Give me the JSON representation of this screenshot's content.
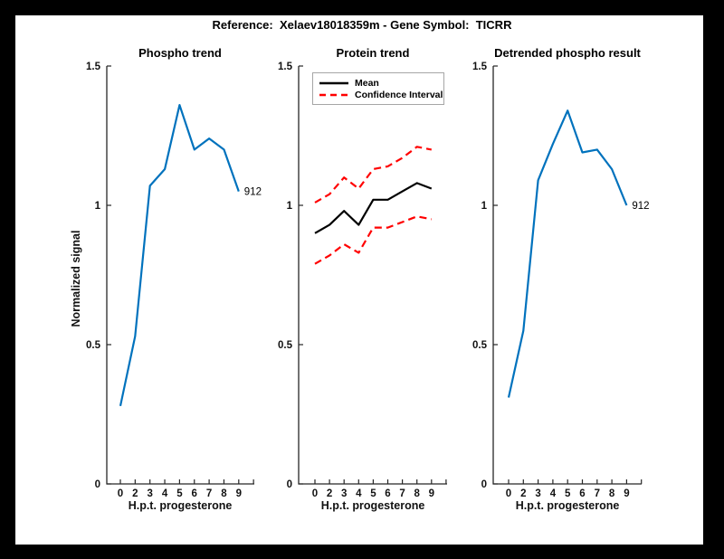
{
  "figure": {
    "title": "Reference:  Xelaev18018359m - Gene Symbol:  TICRR"
  },
  "colors": {
    "blue": "#0072BD",
    "red": "#FF0000",
    "black": "#000000",
    "axis": "#262626",
    "figure_border": "#000000",
    "paper": "#ffffff"
  },
  "chart_data": [
    {
      "type": "line",
      "title": "Phospho trend",
      "xlabel": "H.p.t. progesterone",
      "ylabel": "Normalized signal",
      "x_labels": [
        "0",
        "2",
        "3",
        "4",
        "5",
        "6",
        "7",
        "8",
        "9"
      ],
      "ylim": [
        0,
        1.5
      ],
      "yticks": [
        0,
        0.5,
        1,
        1.5
      ],
      "ytick_labels": [
        "0",
        "0.5",
        "1",
        "1.5"
      ],
      "grid": false,
      "series": [
        {
          "name": "phospho-signal",
          "color": "#0072BD",
          "dashed": false,
          "values": [
            0.28,
            0.53,
            1.07,
            1.13,
            1.36,
            1.2,
            1.24,
            1.2,
            1.05
          ],
          "end_label": "912"
        }
      ]
    },
    {
      "type": "line",
      "title": "Protein trend",
      "xlabel": "H.p.t. progesterone",
      "x_labels": [
        "0",
        "2",
        "3",
        "4",
        "5",
        "6",
        "7",
        "8",
        "9"
      ],
      "ylim": [
        0,
        1.5
      ],
      "yticks": [
        0,
        0.5,
        1,
        1.5
      ],
      "ytick_labels": [
        "0",
        "0.5",
        "1",
        "1.5"
      ],
      "grid": false,
      "legend": {
        "position": "top-left",
        "entries": [
          {
            "label": "Mean",
            "color": "#000000",
            "dashed": false
          },
          {
            "label": "Confidence Interval",
            "color": "#FF0000",
            "dashed": true
          }
        ]
      },
      "series": [
        {
          "name": "protein-mean",
          "color": "#000000",
          "dashed": false,
          "values": [
            0.9,
            0.93,
            0.98,
            0.93,
            1.02,
            1.02,
            1.05,
            1.08,
            1.06
          ]
        },
        {
          "name": "confidence-upper",
          "color": "#FF0000",
          "dashed": true,
          "values": [
            1.01,
            1.04,
            1.1,
            1.06,
            1.13,
            1.14,
            1.17,
            1.21,
            1.2
          ]
        },
        {
          "name": "confidence-lower",
          "color": "#FF0000",
          "dashed": true,
          "values": [
            0.79,
            0.82,
            0.86,
            0.83,
            0.92,
            0.92,
            0.94,
            0.96,
            0.95
          ]
        }
      ]
    },
    {
      "type": "line",
      "title": "Detrended phospho result",
      "xlabel": "H.p.t. progesterone",
      "x_labels": [
        "0",
        "2",
        "3",
        "4",
        "5",
        "6",
        "7",
        "8",
        "9"
      ],
      "ylim": [
        0,
        1.5
      ],
      "yticks": [
        0,
        0.5,
        1,
        1.5
      ],
      "ytick_labels": [
        "0",
        "0.5",
        "1",
        "1.5"
      ],
      "grid": false,
      "series": [
        {
          "name": "detrended-phospho",
          "color": "#0072BD",
          "dashed": false,
          "values": [
            0.31,
            0.55,
            1.09,
            1.22,
            1.34,
            1.19,
            1.2,
            1.13,
            1.0
          ],
          "end_label": "912"
        }
      ]
    }
  ]
}
